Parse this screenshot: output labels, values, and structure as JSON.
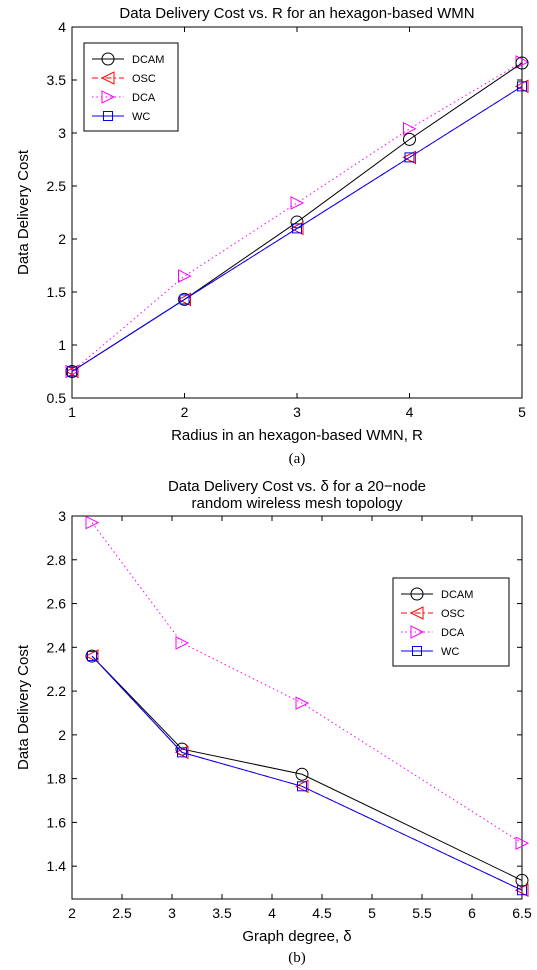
{
  "chart_data": [
    {
      "type": "line",
      "title": "Data Delivery Cost vs. R for an hexagon-based WMN",
      "xlabel": "Radius in an hexagon-based WMN, R",
      "ylabel": "Data Delivery Cost",
      "caption": "(a)",
      "xlim": [
        1,
        5
      ],
      "ylim": [
        0.5,
        4
      ],
      "xticks": [
        1,
        2,
        3,
        4,
        5
      ],
      "xtick_labels": [
        "1",
        "2",
        "3",
        "4",
        "5"
      ],
      "yticks": [
        0.5,
        1,
        1.5,
        2,
        2.5,
        3,
        3.5,
        4
      ],
      "ytick_labels": [
        "0.5",
        "1",
        "1.5",
        "2",
        "2.5",
        "3",
        "3.5",
        "4"
      ],
      "grid": false,
      "legend_position": "top-left",
      "x": [
        1,
        2,
        3,
        4,
        5
      ],
      "series": [
        {
          "name": "DCAM",
          "values": [
            0.75,
            1.43,
            2.16,
            2.94,
            3.66
          ],
          "color": "#000000",
          "marker": "circle",
          "dash": "solid"
        },
        {
          "name": "OSC",
          "values": [
            0.75,
            1.43,
            2.1,
            2.77,
            3.44
          ],
          "color": "#ff0000",
          "marker": "triangle-left",
          "dash": "dashdot"
        },
        {
          "name": "DCA",
          "values": [
            0.75,
            1.65,
            2.34,
            3.04,
            3.67
          ],
          "color": "#ff00ff",
          "marker": "triangle-right",
          "dash": "dotted"
        },
        {
          "name": "WC",
          "values": [
            0.75,
            1.43,
            2.1,
            2.77,
            3.44
          ],
          "color": "#0000ff",
          "marker": "square",
          "dash": "solid"
        }
      ]
    },
    {
      "type": "line",
      "title": [
        "Data Delivery Cost vs. δ for a 20−node",
        "random wireless mesh topology"
      ],
      "xlabel": "Graph degree, δ",
      "ylabel": "Data Delivery Cost",
      "caption": "(b)",
      "xlim": [
        2,
        6.5
      ],
      "ylim": [
        1.25,
        3
      ],
      "xticks": [
        2,
        2.5,
        3,
        3.5,
        4,
        4.5,
        5,
        5.5,
        6,
        6.5
      ],
      "xtick_labels": [
        "2",
        "2.5",
        "3",
        "3.5",
        "4",
        "4.5",
        "5",
        "5.5",
        "6",
        "6.5"
      ],
      "yticks": [
        1.4,
        1.6,
        1.8,
        2,
        2.2,
        2.4,
        2.6,
        2.8,
        3
      ],
      "ytick_labels": [
        "1.4",
        "1.6",
        "1.8",
        "2",
        "2.2",
        "2.4",
        "2.6",
        "2.8",
        "3"
      ],
      "grid": false,
      "legend_position": "top-right",
      "x": [
        2.2,
        3.1,
        4.3,
        6.5
      ],
      "series": [
        {
          "name": "DCAM",
          "values": [
            2.36,
            1.935,
            1.82,
            1.335
          ],
          "color": "#000000",
          "marker": "circle",
          "dash": "solid"
        },
        {
          "name": "OSC",
          "values": [
            2.36,
            1.92,
            1.765,
            1.29
          ],
          "color": "#ff0000",
          "marker": "triangle-left",
          "dash": "dashdot"
        },
        {
          "name": "DCA",
          "values": [
            2.97,
            2.42,
            2.145,
            1.505
          ],
          "color": "#ff00ff",
          "marker": "triangle-right",
          "dash": "dotted"
        },
        {
          "name": "WC",
          "values": [
            2.36,
            1.92,
            1.765,
            1.29
          ],
          "color": "#0000ff",
          "marker": "square",
          "dash": "solid"
        }
      ]
    }
  ]
}
